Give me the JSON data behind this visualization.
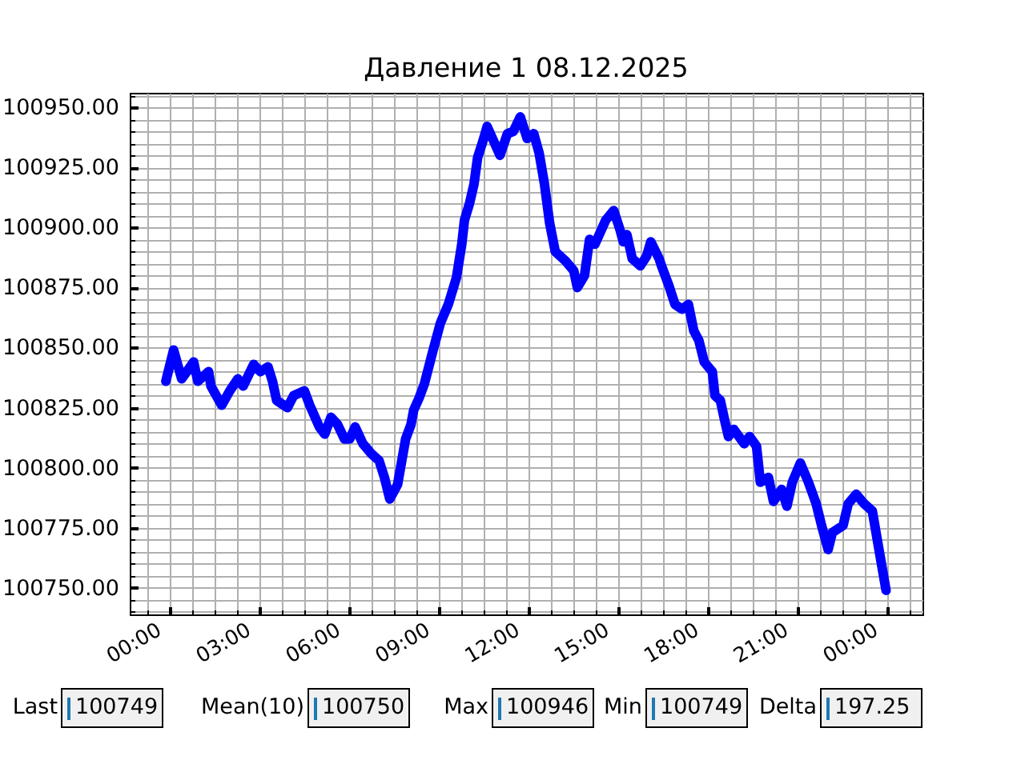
{
  "chart_data": {
    "type": "line",
    "title": "Давление 1 08.12.2025",
    "color": "#0000ff",
    "grid": true,
    "x": [
      -0.14,
      0.12,
      0.39,
      0.79,
      0.93,
      1.29,
      1.37,
      1.73,
      2.0,
      2.27,
      2.45,
      2.8,
      3.03,
      3.28,
      3.43,
      3.57,
      3.93,
      4.14,
      4.5,
      4.68,
      5.0,
      5.18,
      5.39,
      5.61,
      5.84,
      6.02,
      6.2,
      6.46,
      6.73,
      7.0,
      7.18,
      7.36,
      7.62,
      7.89,
      8.07,
      8.16,
      8.34,
      8.52,
      8.79,
      9.05,
      9.32,
      9.59,
      9.77,
      9.86,
      10.03,
      10.18,
      10.3,
      10.48,
      10.62,
      11.05,
      11.3,
      11.5,
      11.73,
      11.96,
      12.18,
      12.36,
      12.54,
      12.71,
      12.9,
      13.25,
      13.52,
      13.64,
      13.88,
      14.05,
      14.23,
      14.41,
      14.59,
      14.86,
      15.07,
      15.18,
      15.3,
      15.48,
      15.75,
      15.96,
      16.1,
      16.38,
      16.46,
      16.7,
      16.91,
      17.15,
      17.36,
      17.54,
      17.71,
      17.89,
      18.16,
      18.25,
      18.43,
      18.57,
      18.7,
      18.88,
      19.23,
      19.41,
      19.64,
      19.77,
      20.04,
      20.21,
      20.48,
      20.66,
      20.84,
      21.11,
      21.38,
      21.64,
      21.82,
      22.04,
      22.18,
      22.54,
      22.71,
      22.98,
      23.25,
      23.52,
      23.7,
      23.98
    ],
    "values": [
      100836,
      100849,
      100837,
      100844,
      100836,
      100840,
      100834,
      100826,
      100832,
      100837,
      100834,
      100843,
      100840,
      100842,
      100836,
      100828,
      100825,
      100830,
      100832,
      100826,
      100817,
      100814,
      100821,
      100818,
      100812,
      100812,
      100817,
      100810,
      100806,
      100803,
      100796,
      100787,
      100793,
      100812,
      100818,
      100824,
      100829,
      100835,
      100848,
      100860,
      100868,
      100879,
      100893,
      100903,
      100910,
      100918,
      100929,
      100936,
      100942,
      100930,
      100939,
      100940,
      100946,
      100937,
      100939,
      100931,
      100918,
      100902,
      100890,
      100886,
      100882,
      100875,
      100880,
      100895,
      100893,
      100898,
      100903,
      100907,
      100899,
      100894,
      100897,
      100887,
      100884,
      100888,
      100894,
      100887,
      100884,
      100876,
      100868,
      100866,
      100868,
      100857,
      100853,
      100844,
      100840,
      100830,
      100828,
      100820,
      100813,
      100816,
      100810,
      100813,
      100809,
      100794,
      100796,
      100786,
      100791,
      100784,
      100794,
      100802,
      100794,
      100785,
      100776,
      100766,
      100773,
      100776,
      100785,
      100789,
      100785,
      100782,
      100769,
      100749
    ],
    "xlim": [
      -1.35,
      25.2
    ],
    "ylim": [
      100739,
      100956
    ],
    "xticks": [
      {
        "value": -0.75,
        "label": null
      },
      {
        "value": 0,
        "label": "00:00"
      },
      {
        "value": 0.75,
        "label": null
      },
      {
        "value": 1.5,
        "label": null
      },
      {
        "value": 2.25,
        "label": null
      },
      {
        "value": 3,
        "label": "03:00"
      },
      {
        "value": 3.75,
        "label": null
      },
      {
        "value": 4.5,
        "label": null
      },
      {
        "value": 5.25,
        "label": null
      },
      {
        "value": 6,
        "label": "06:00"
      },
      {
        "value": 6.75,
        "label": null
      },
      {
        "value": 7.5,
        "label": null
      },
      {
        "value": 8.25,
        "label": null
      },
      {
        "value": 9,
        "label": "09:00"
      },
      {
        "value": 9.75,
        "label": null
      },
      {
        "value": 10.5,
        "label": null
      },
      {
        "value": 11.25,
        "label": null
      },
      {
        "value": 12,
        "label": "12:00"
      },
      {
        "value": 12.75,
        "label": null
      },
      {
        "value": 13.5,
        "label": null
      },
      {
        "value": 14.25,
        "label": null
      },
      {
        "value": 15,
        "label": "15:00"
      },
      {
        "value": 15.75,
        "label": null
      },
      {
        "value": 16.5,
        "label": null
      },
      {
        "value": 17.25,
        "label": null
      },
      {
        "value": 18,
        "label": "18:00"
      },
      {
        "value": 18.75,
        "label": null
      },
      {
        "value": 19.5,
        "label": null
      },
      {
        "value": 20.25,
        "label": null
      },
      {
        "value": 21,
        "label": "21:00"
      },
      {
        "value": 21.75,
        "label": null
      },
      {
        "value": 22.5,
        "label": null
      },
      {
        "value": 23.25,
        "label": null
      },
      {
        "value": 24,
        "label": "00:00"
      },
      {
        "value": 24.75,
        "label": null
      }
    ],
    "yticks": [
      {
        "value": 100740,
        "label": null
      },
      {
        "value": 100745,
        "label": null
      },
      {
        "value": 100750,
        "label": "100750.00"
      },
      {
        "value": 100755,
        "label": null
      },
      {
        "value": 100760,
        "label": null
      },
      {
        "value": 100765,
        "label": null
      },
      {
        "value": 100770,
        "label": null
      },
      {
        "value": 100775,
        "label": "100775.00"
      },
      {
        "value": 100780,
        "label": null
      },
      {
        "value": 100785,
        "label": null
      },
      {
        "value": 100790,
        "label": null
      },
      {
        "value": 100795,
        "label": null
      },
      {
        "value": 100800,
        "label": "100800.00"
      },
      {
        "value": 100805,
        "label": null
      },
      {
        "value": 100810,
        "label": null
      },
      {
        "value": 100815,
        "label": null
      },
      {
        "value": 100820,
        "label": null
      },
      {
        "value": 100825,
        "label": "100825.00"
      },
      {
        "value": 100830,
        "label": null
      },
      {
        "value": 100835,
        "label": null
      },
      {
        "value": 100840,
        "label": null
      },
      {
        "value": 100845,
        "label": null
      },
      {
        "value": 100850,
        "label": "100850.00"
      },
      {
        "value": 100855,
        "label": null
      },
      {
        "value": 100860,
        "label": null
      },
      {
        "value": 100865,
        "label": null
      },
      {
        "value": 100870,
        "label": null
      },
      {
        "value": 100875,
        "label": "100875.00"
      },
      {
        "value": 100880,
        "label": null
      },
      {
        "value": 100885,
        "label": null
      },
      {
        "value": 100890,
        "label": null
      },
      {
        "value": 100895,
        "label": null
      },
      {
        "value": 100900,
        "label": "100900.00"
      },
      {
        "value": 100905,
        "label": null
      },
      {
        "value": 100910,
        "label": null
      },
      {
        "value": 100915,
        "label": null
      },
      {
        "value": 100920,
        "label": null
      },
      {
        "value": 100925,
        "label": "100925.00"
      },
      {
        "value": 100930,
        "label": null
      },
      {
        "value": 100935,
        "label": null
      },
      {
        "value": 100940,
        "label": null
      },
      {
        "value": 100945,
        "label": null
      },
      {
        "value": 100950,
        "label": "100950.00"
      },
      {
        "value": 100955,
        "label": null
      }
    ],
    "annotations": [
      "Last",
      "100749",
      "Mean(10)",
      "100750",
      "Max",
      "100946",
      "Min",
      "100749",
      "Delta",
      "197.25"
    ]
  }
}
